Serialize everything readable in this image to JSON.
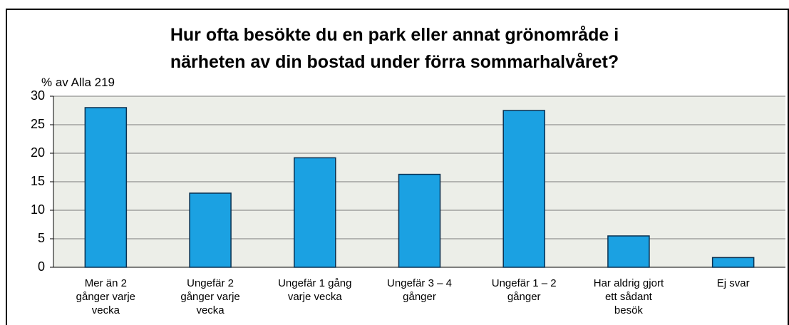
{
  "chart_data": {
    "type": "bar",
    "title": "Hur ofta besökte du en park eller annat grönområde i\nnärheten av  din bostad under förra sommarhalvåret?",
    "y_label": "% av Alla 219",
    "categories": [
      "Mer än 2\ngånger varje\nvecka",
      "Ungefär 2\ngånger varje\nvecka",
      "Ungefär 1 gång\nvarje vecka",
      "Ungefär 3 – 4\ngånger",
      "Ungefär 1 – 2\ngånger",
      "Har aldrig gjort\nett sådant\nbesök",
      "Ej svar"
    ],
    "values": [
      28,
      13,
      19.2,
      16.3,
      27.5,
      5.5,
      1.7
    ],
    "color": "#1ba1e2",
    "ylim": [
      0,
      30
    ],
    "yticks": [
      0,
      5,
      10,
      15,
      20,
      25,
      30
    ],
    "grid": true
  }
}
